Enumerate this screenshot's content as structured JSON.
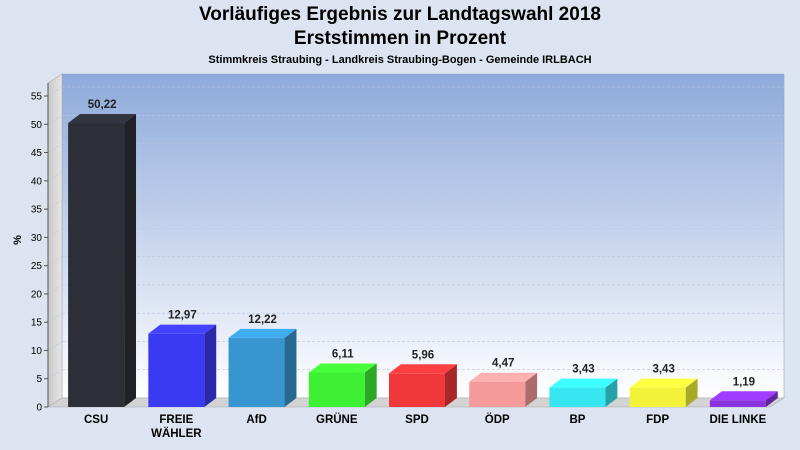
{
  "titles": {
    "line1": "Vorläufiges Ergebnis zur Landtagswahl 2018",
    "line2": "Erststimmen in Prozent",
    "subtitle": "Stimmkreis Straubing - Landkreis Straubing-Bogen - Gemeinde IRLBACH"
  },
  "chart_data": {
    "type": "bar",
    "title": "Vorläufiges Ergebnis zur Landtagswahl 2018",
    "subtitle": "Erststimmen in Prozent",
    "note": "Stimmkreis Straubing - Landkreis Straubing-Bogen - Gemeinde IRLBACH",
    "ylabel": "%",
    "xlabel": "",
    "ylim": [
      0,
      55
    ],
    "yticks": [
      0,
      5,
      10,
      15,
      20,
      25,
      30,
      35,
      40,
      45,
      50,
      55
    ],
    "grid": true,
    "categories": [
      [
        "CSU"
      ],
      [
        "FREIE",
        "WÄHLER"
      ],
      [
        "AfD"
      ],
      [
        "GRÜNE"
      ],
      [
        "SPD"
      ],
      [
        "ÖDP"
      ],
      [
        "BP"
      ],
      [
        "FDP"
      ],
      [
        "DIE LINKE"
      ]
    ],
    "values": [
      50.22,
      12.97,
      12.22,
      6.11,
      5.96,
      4.47,
      3.43,
      3.43,
      1.19
    ],
    "value_labels": [
      "50,22",
      "12,97",
      "12,22",
      "6,11",
      "5,96",
      "4,47",
      "3,43",
      "3,43",
      "1,19"
    ],
    "colors": [
      "#2c2f38",
      "#3a3af2",
      "#3796cf",
      "#3ef033",
      "#f0383a",
      "#f59a9a",
      "#36e6f0",
      "#f2f23a",
      "#8a34e0"
    ]
  }
}
